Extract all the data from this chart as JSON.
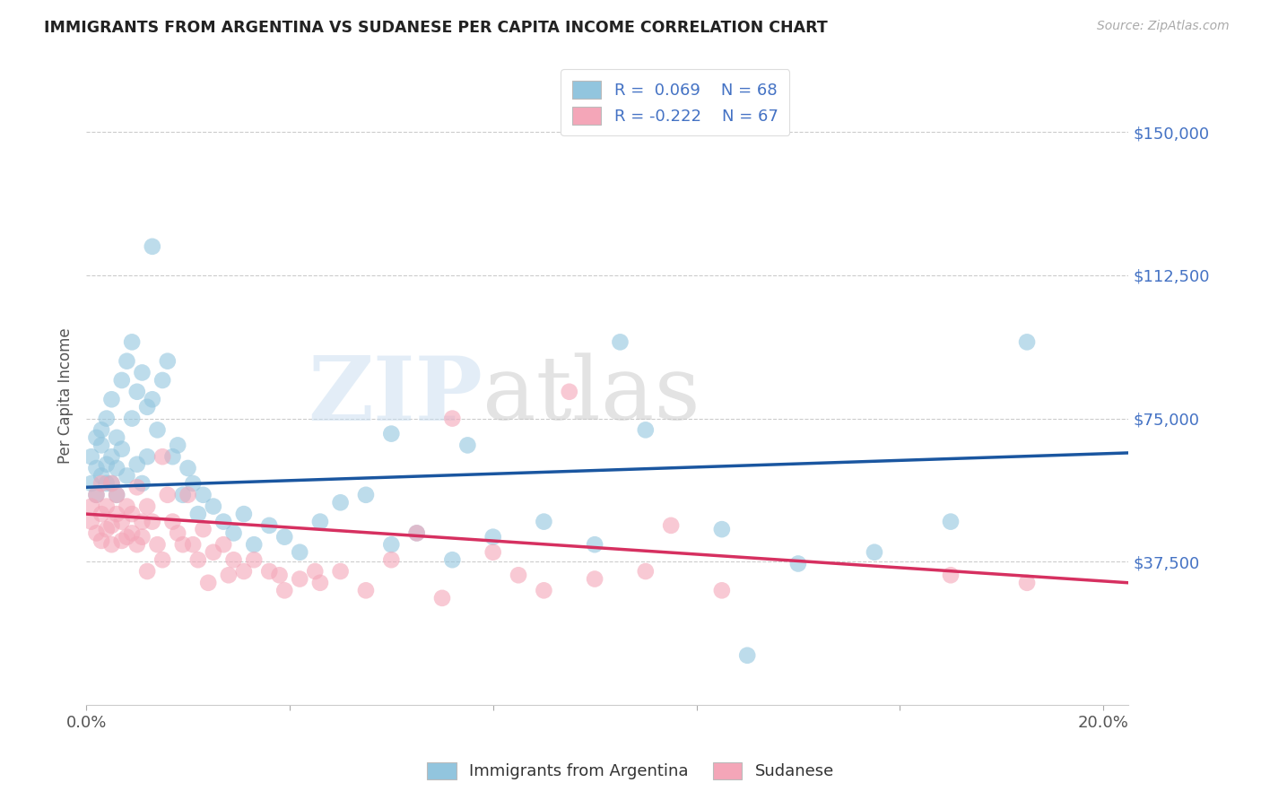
{
  "title": "IMMIGRANTS FROM ARGENTINA VS SUDANESE PER CAPITA INCOME CORRELATION CHART",
  "source": "Source: ZipAtlas.com",
  "ylabel": "Per Capita Income",
  "ytick_labels": [
    "$37,500",
    "$75,000",
    "$112,500",
    "$150,000"
  ],
  "ytick_values": [
    37500,
    75000,
    112500,
    150000
  ],
  "ymin": 0,
  "ymax": 162000,
  "xmin": 0.0,
  "xmax": 0.205,
  "blue_color": "#92c5de",
  "pink_color": "#f4a6b8",
  "blue_line_color": "#1a56a0",
  "pink_line_color": "#d63060",
  "watermark_zip": "ZIP",
  "watermark_atlas": "atlas",
  "legend_label1": "Immigrants from Argentina",
  "legend_label2": "Sudanese",
  "argentina_x": [
    0.001,
    0.001,
    0.002,
    0.002,
    0.002,
    0.003,
    0.003,
    0.003,
    0.004,
    0.004,
    0.004,
    0.005,
    0.005,
    0.005,
    0.006,
    0.006,
    0.006,
    0.007,
    0.007,
    0.008,
    0.008,
    0.009,
    0.009,
    0.01,
    0.01,
    0.011,
    0.011,
    0.012,
    0.012,
    0.013,
    0.013,
    0.014,
    0.015,
    0.016,
    0.017,
    0.018,
    0.019,
    0.02,
    0.021,
    0.022,
    0.023,
    0.025,
    0.027,
    0.029,
    0.031,
    0.033,
    0.036,
    0.039,
    0.042,
    0.046,
    0.05,
    0.055,
    0.06,
    0.065,
    0.072,
    0.08,
    0.09,
    0.1,
    0.11,
    0.125,
    0.14,
    0.155,
    0.17,
    0.185,
    0.06,
    0.075,
    0.105,
    0.13
  ],
  "argentina_y": [
    58000,
    65000,
    62000,
    70000,
    55000,
    60000,
    68000,
    72000,
    63000,
    58000,
    75000,
    65000,
    80000,
    58000,
    70000,
    62000,
    55000,
    85000,
    67000,
    60000,
    90000,
    95000,
    75000,
    82000,
    63000,
    87000,
    58000,
    78000,
    65000,
    120000,
    80000,
    72000,
    85000,
    90000,
    65000,
    68000,
    55000,
    62000,
    58000,
    50000,
    55000,
    52000,
    48000,
    45000,
    50000,
    42000,
    47000,
    44000,
    40000,
    48000,
    53000,
    55000,
    42000,
    45000,
    38000,
    44000,
    48000,
    42000,
    72000,
    46000,
    37000,
    40000,
    48000,
    95000,
    71000,
    68000,
    95000,
    13000
  ],
  "sudanese_x": [
    0.001,
    0.001,
    0.002,
    0.002,
    0.003,
    0.003,
    0.003,
    0.004,
    0.004,
    0.005,
    0.005,
    0.005,
    0.006,
    0.006,
    0.007,
    0.007,
    0.008,
    0.008,
    0.009,
    0.009,
    0.01,
    0.01,
    0.011,
    0.011,
    0.012,
    0.013,
    0.014,
    0.015,
    0.016,
    0.017,
    0.018,
    0.019,
    0.02,
    0.021,
    0.022,
    0.023,
    0.025,
    0.027,
    0.029,
    0.031,
    0.033,
    0.036,
    0.039,
    0.042,
    0.046,
    0.05,
    0.055,
    0.06,
    0.065,
    0.072,
    0.08,
    0.09,
    0.1,
    0.11,
    0.125,
    0.095,
    0.115,
    0.085,
    0.07,
    0.045,
    0.038,
    0.028,
    0.024,
    0.015,
    0.012,
    0.17,
    0.185
  ],
  "sudanese_y": [
    52000,
    48000,
    55000,
    45000,
    50000,
    58000,
    43000,
    52000,
    46000,
    58000,
    47000,
    42000,
    55000,
    50000,
    48000,
    43000,
    52000,
    44000,
    50000,
    45000,
    57000,
    42000,
    48000,
    44000,
    52000,
    48000,
    42000,
    65000,
    55000,
    48000,
    45000,
    42000,
    55000,
    42000,
    38000,
    46000,
    40000,
    42000,
    38000,
    35000,
    38000,
    35000,
    30000,
    33000,
    32000,
    35000,
    30000,
    38000,
    45000,
    75000,
    40000,
    30000,
    33000,
    35000,
    30000,
    82000,
    47000,
    34000,
    28000,
    35000,
    34000,
    34000,
    32000,
    38000,
    35000,
    34000,
    32000
  ]
}
